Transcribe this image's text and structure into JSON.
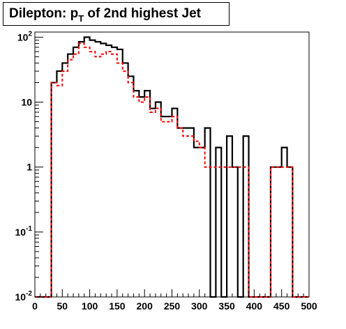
{
  "title": {
    "prefix": "Dilepton: p",
    "subscript": "T",
    "suffix": " of 2nd highest Jet"
  },
  "chart_data": {
    "type": "histogram",
    "title": "Dilepton: pT of 2nd highest Jet",
    "xlabel": "",
    "ylabel": "",
    "xlim": [
      0,
      500
    ],
    "ylim": [
      0.01,
      120
    ],
    "yscale": "log",
    "bin_width": 10,
    "grid": false,
    "x_ticks": [
      0,
      50,
      100,
      150,
      200,
      250,
      300,
      350,
      400,
      450,
      500
    ],
    "x_tick_labels": [
      "0",
      "50",
      "100",
      "150",
      "200",
      "250",
      "300",
      "350",
      "400",
      "450",
      "500"
    ],
    "y_ticks": [
      0.01,
      0.1,
      1,
      10,
      100
    ],
    "y_tick_labels": [
      {
        "base": "10",
        "exp": "-2"
      },
      {
        "base": "10",
        "exp": "-1"
      },
      {
        "base": "1",
        "exp": ""
      },
      {
        "base": "10",
        "exp": ""
      },
      {
        "base": "10",
        "exp": "2"
      }
    ],
    "bin_edges": [
      0,
      10,
      20,
      30,
      40,
      50,
      60,
      70,
      80,
      90,
      100,
      110,
      120,
      130,
      140,
      150,
      160,
      170,
      180,
      190,
      200,
      210,
      220,
      230,
      240,
      250,
      260,
      270,
      280,
      290,
      300,
      310,
      320,
      330,
      340,
      350,
      360,
      370,
      380,
      390,
      400,
      410,
      420,
      430,
      440,
      450,
      460,
      470,
      480,
      490,
      500
    ],
    "series": [
      {
        "color": "#000000",
        "style": "solid",
        "values": [
          0,
          0,
          0,
          20,
          30,
          40,
          55,
          70,
          85,
          100,
          90,
          85,
          80,
          75,
          70,
          65,
          40,
          25,
          15,
          12,
          15,
          8,
          10,
          6,
          6,
          8,
          4,
          4,
          4,
          2,
          2,
          4,
          0,
          2,
          0,
          3,
          1,
          0,
          3,
          0,
          0,
          0,
          0,
          1,
          1,
          2,
          1,
          0,
          0,
          0
        ]
      },
      {
        "color": "#ff0000",
        "style": "dashed",
        "values": [
          0,
          0,
          0,
          20,
          18,
          30,
          45,
          55,
          80,
          70,
          60,
          50,
          55,
          60,
          55,
          40,
          30,
          20,
          12,
          10,
          12,
          7,
          8,
          5,
          5,
          6,
          4,
          3,
          3,
          2.5,
          2,
          1,
          1,
          1,
          1,
          1,
          1,
          1,
          1,
          0,
          0,
          0,
          0,
          1,
          1,
          1,
          1,
          0,
          0,
          0
        ]
      }
    ]
  }
}
